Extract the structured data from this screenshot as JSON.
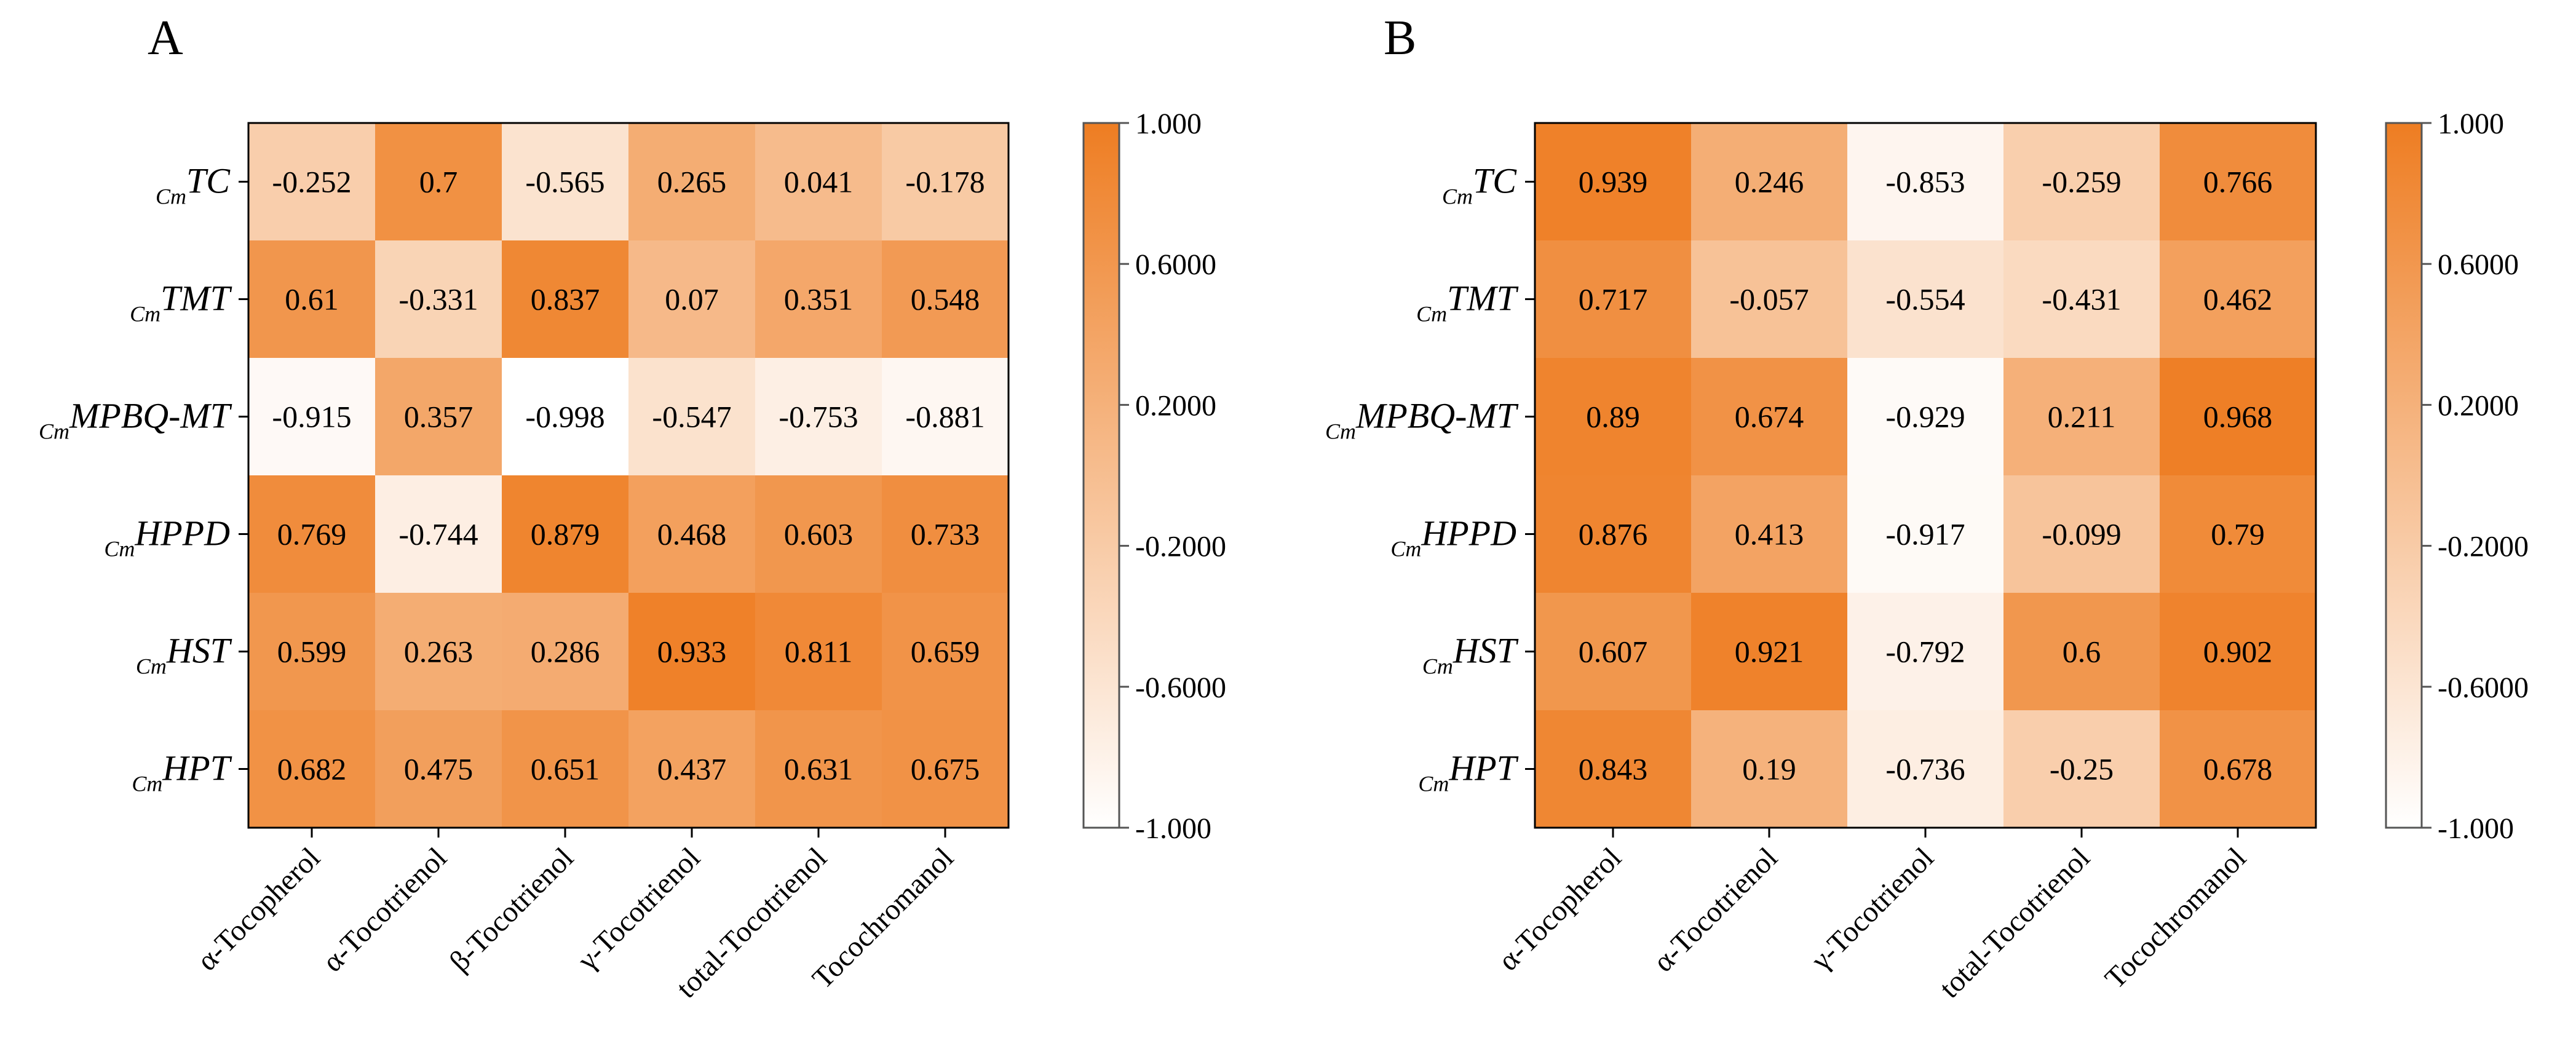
{
  "figure_title": "",
  "color_scale": {
    "low": "#ffffff",
    "high": "#ee7d22",
    "border": "#000000"
  },
  "chart_data": [
    {
      "type": "heatmap",
      "panel": "A",
      "title": "",
      "row_prefix": "Cm",
      "rows": [
        "TC",
        "TMT",
        "MPBQ-MT",
        "HPPD",
        "HST",
        "HPT"
      ],
      "columns": [
        "α-Tocopherol",
        "α-Tocotrienol",
        "β-Tocotrienol",
        "γ-Tocotrienol",
        "total-Tocotrienol",
        "Tocochromanol"
      ],
      "values": [
        [
          "-0.252",
          "0.7",
          "-0.565",
          "0.265",
          "0.041",
          "-0.178"
        ],
        [
          "0.61",
          "-0.331",
          "0.837",
          "0.07",
          "0.351",
          "0.548"
        ],
        [
          "-0.915",
          "0.357",
          "-0.998",
          "-0.547",
          "-0.753",
          "-0.881"
        ],
        [
          "0.769",
          "-0.744",
          "0.879",
          "0.468",
          "0.603",
          "0.733"
        ],
        [
          "0.599",
          "0.263",
          "0.286",
          "0.933",
          "0.811",
          "0.659"
        ],
        [
          "0.682",
          "0.475",
          "0.651",
          "0.437",
          "0.631",
          "0.675"
        ]
      ],
      "color_range": [
        -1,
        1
      ],
      "colorbar_ticks": [
        {
          "value": 1,
          "label": "1.000"
        },
        {
          "value": 0.6,
          "label": "0.6000"
        },
        {
          "value": 0.2,
          "label": "0.2000"
        },
        {
          "value": -0.2,
          "label": "-0.2000"
        },
        {
          "value": -0.6,
          "label": "-0.6000"
        },
        {
          "value": -1,
          "label": "-1.000"
        }
      ]
    },
    {
      "type": "heatmap",
      "panel": "B",
      "title": "",
      "row_prefix": "Cm",
      "rows": [
        "TC",
        "TMT",
        "MPBQ-MT",
        "HPPD",
        "HST",
        "HPT"
      ],
      "columns": [
        "α-Tocopherol",
        "α-Tocotrienol",
        "γ-Tocotrienol",
        "total-Tocotrienol",
        "Tocochromanol"
      ],
      "values": [
        [
          "0.939",
          "0.246",
          "-0.853",
          "-0.259",
          "0.766"
        ],
        [
          "0.717",
          "-0.057",
          "-0.554",
          "-0.431",
          "0.462"
        ],
        [
          "0.89",
          "0.674",
          "-0.929",
          "0.211",
          "0.968"
        ],
        [
          "0.876",
          "0.413",
          "-0.917",
          "-0.099",
          "0.79"
        ],
        [
          "0.607",
          "0.921",
          "-0.792",
          "0.6",
          "0.902"
        ],
        [
          "0.843",
          "0.19",
          "-0.736",
          "-0.25",
          "0.678"
        ]
      ],
      "color_range": [
        -1,
        1
      ],
      "colorbar_ticks": [
        {
          "value": 1,
          "label": "1.000"
        },
        {
          "value": 0.6,
          "label": "0.6000"
        },
        {
          "value": 0.2,
          "label": "0.2000"
        },
        {
          "value": -0.2,
          "label": "-0.2000"
        },
        {
          "value": -0.6,
          "label": "-0.6000"
        },
        {
          "value": -1,
          "label": "-1.000"
        }
      ]
    }
  ]
}
